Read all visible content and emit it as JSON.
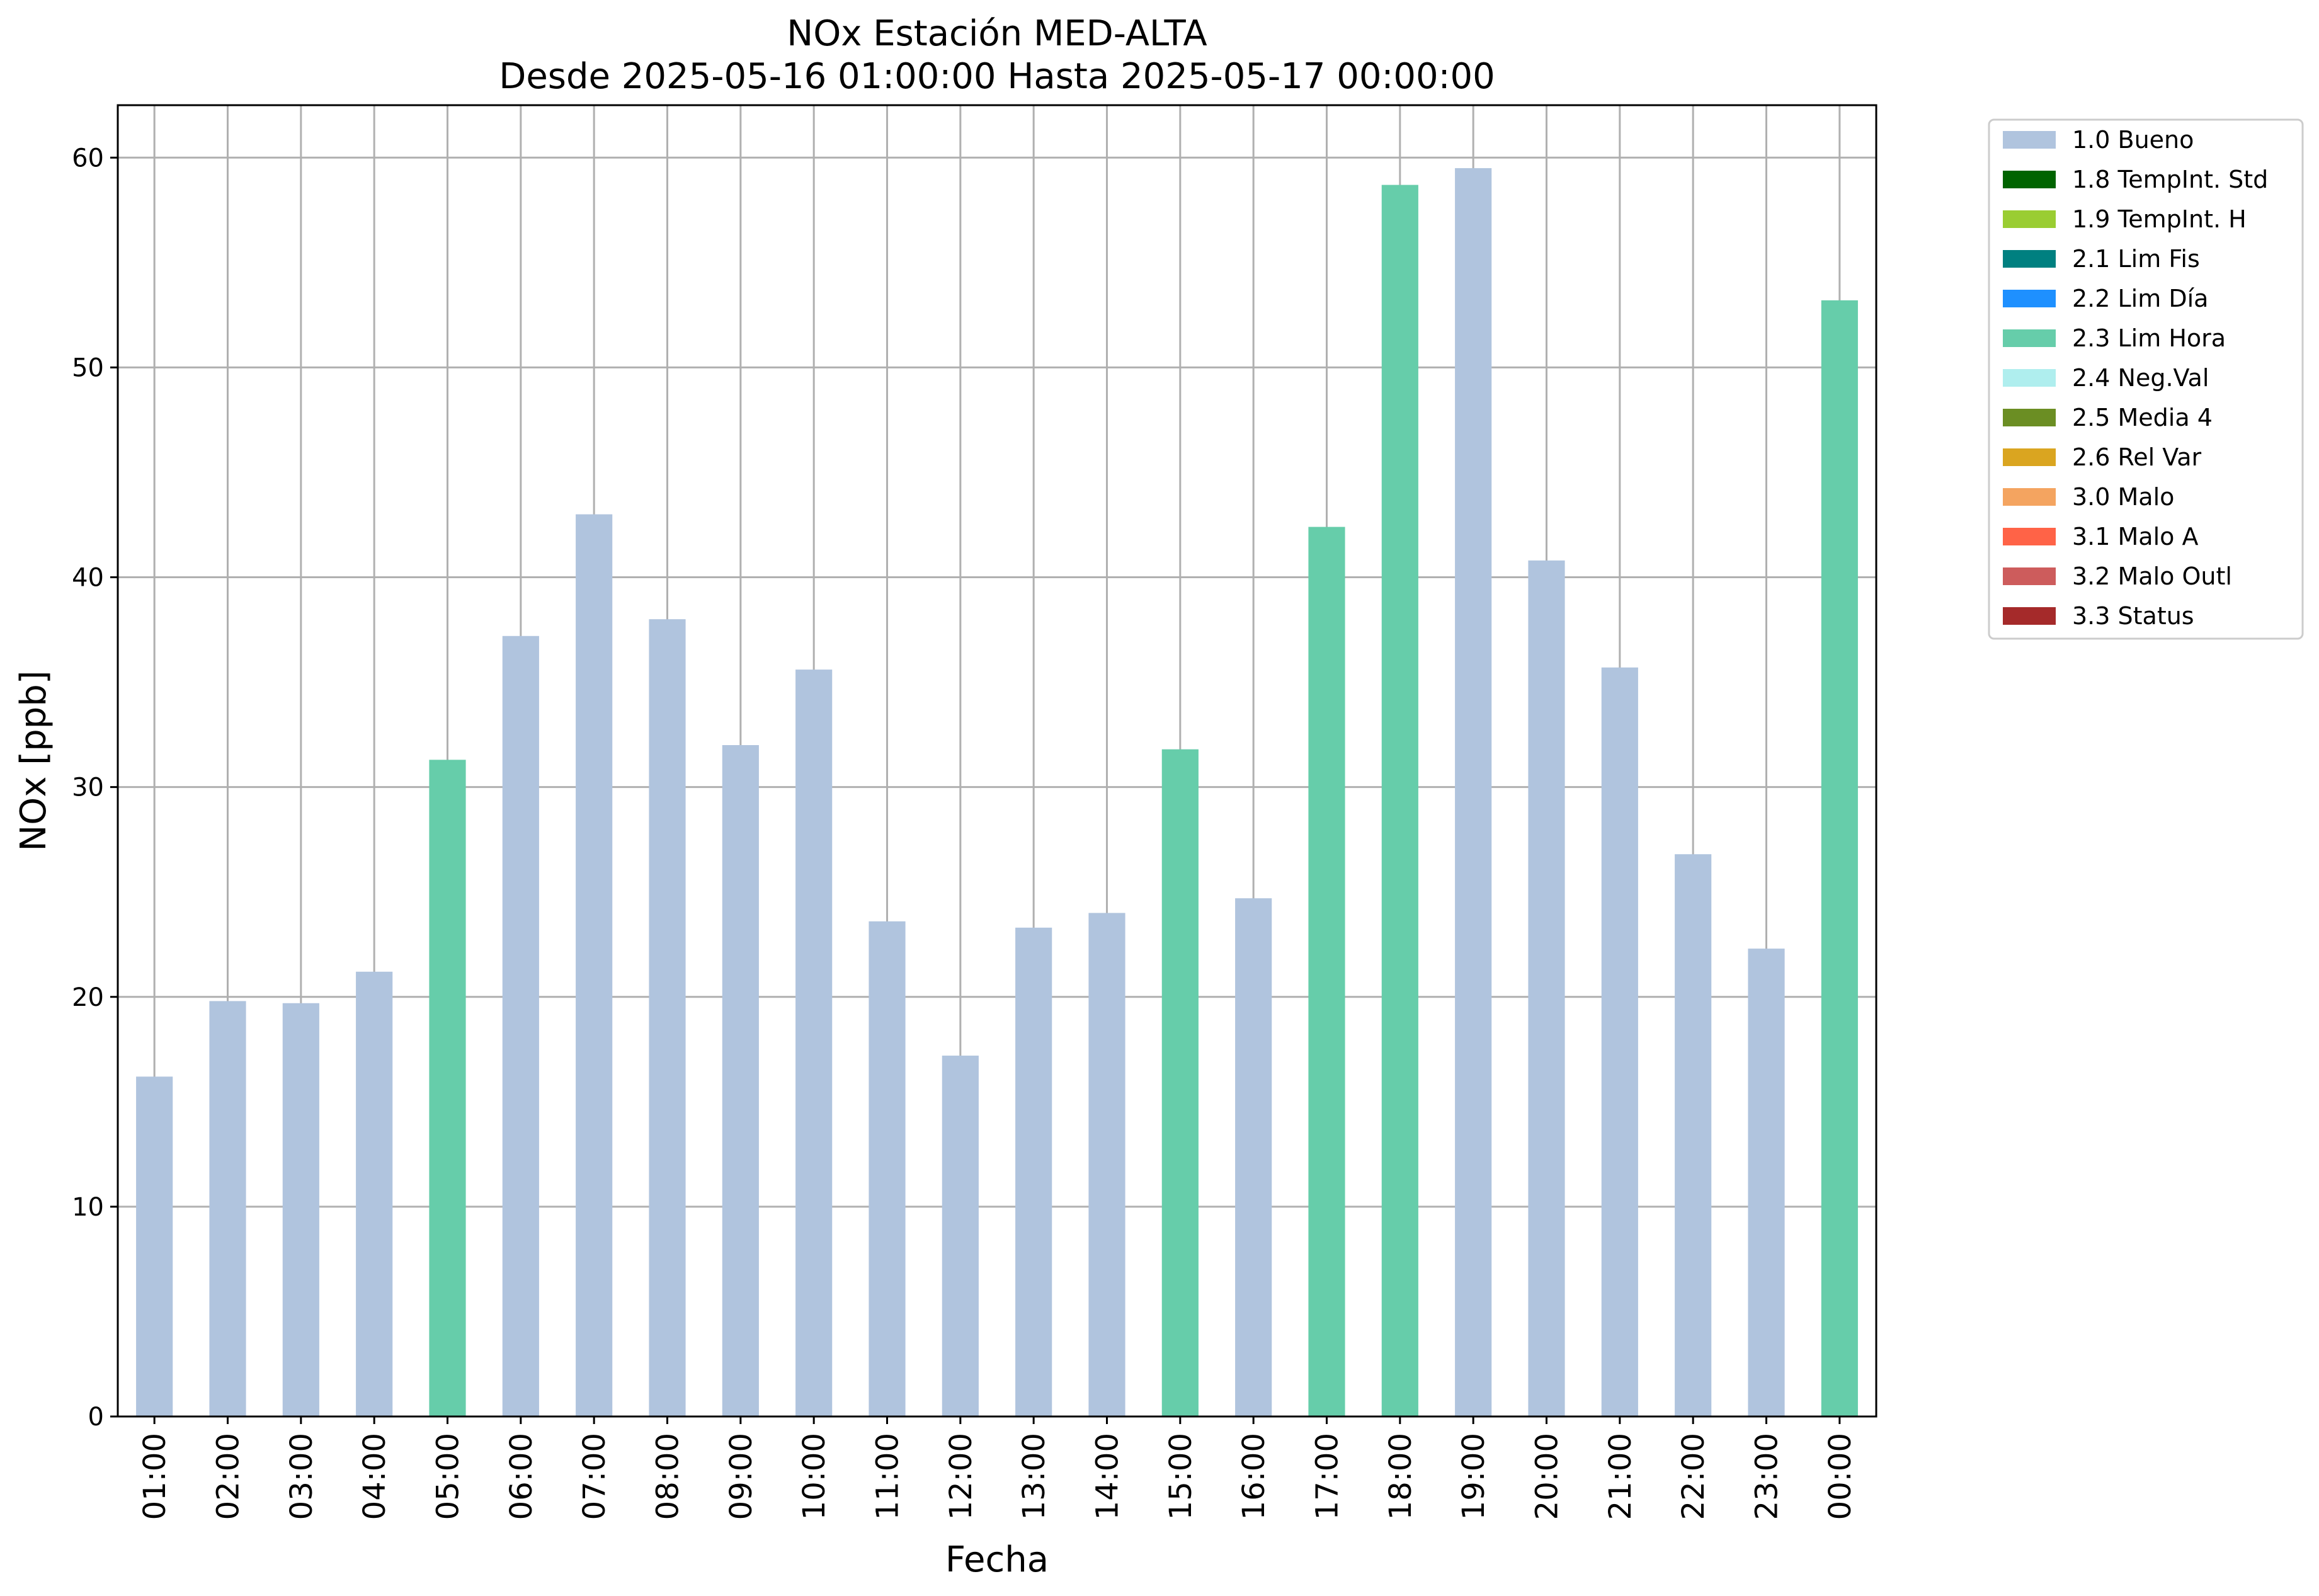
{
  "chart_data": {
    "type": "bar",
    "title": "NOx Estación MED-ALTA",
    "subtitle": "Desde 2025-05-16 01:00:00 Hasta 2025-05-17 00:00:00",
    "xlabel": "Fecha",
    "ylabel": "NOx [ppb]",
    "ylim": [
      0,
      62.5
    ],
    "yticks": [
      0,
      10,
      20,
      30,
      40,
      50,
      60
    ],
    "grid": true,
    "legend_position": "outside-top-right",
    "categories": [
      "01:00",
      "02:00",
      "03:00",
      "04:00",
      "05:00",
      "06:00",
      "07:00",
      "08:00",
      "09:00",
      "10:00",
      "11:00",
      "12:00",
      "13:00",
      "14:00",
      "15:00",
      "16:00",
      "17:00",
      "18:00",
      "19:00",
      "20:00",
      "21:00",
      "22:00",
      "23:00",
      "00:00"
    ],
    "values": [
      16.2,
      19.8,
      19.7,
      21.2,
      31.3,
      37.2,
      43.0,
      38.0,
      32.0,
      35.6,
      23.6,
      17.2,
      23.3,
      24.0,
      31.8,
      24.7,
      42.4,
      58.7,
      59.5,
      40.8,
      35.7,
      26.8,
      22.3,
      53.2
    ],
    "flags": [
      "1.0 Bueno",
      "1.0 Bueno",
      "1.0 Bueno",
      "1.0 Bueno",
      "2.3 Lim Hora",
      "1.0 Bueno",
      "1.0 Bueno",
      "1.0 Bueno",
      "1.0 Bueno",
      "1.0 Bueno",
      "1.0 Bueno",
      "1.0 Bueno",
      "1.0 Bueno",
      "1.0 Bueno",
      "2.3 Lim Hora",
      "1.0 Bueno",
      "2.3 Lim Hora",
      "2.3 Lim Hora",
      "1.0 Bueno",
      "1.0 Bueno",
      "1.0 Bueno",
      "1.0 Bueno",
      "1.0 Bueno",
      "2.3 Lim Hora"
    ],
    "legend": [
      {
        "name": "1.0 Bueno",
        "color": "#b0c4de"
      },
      {
        "name": "1.8 TempInt. Std",
        "color": "#006400"
      },
      {
        "name": "1.9 TempInt. H",
        "color": "#9acd32"
      },
      {
        "name": "2.1 Lim Fis",
        "color": "#008080"
      },
      {
        "name": "2.2 Lim Día",
        "color": "#1e90ff"
      },
      {
        "name": "2.3 Lim Hora",
        "color": "#66cdaa"
      },
      {
        "name": "2.4 Neg.Val",
        "color": "#afeeee"
      },
      {
        "name": "2.5 Media 4",
        "color": "#6b8e23"
      },
      {
        "name": "2.6 Rel Var",
        "color": "#daa520"
      },
      {
        "name": "3.0 Malo",
        "color": "#f4a460"
      },
      {
        "name": "3.1 Malo A",
        "color": "#ff6347"
      },
      {
        "name": "3.2 Malo Outl",
        "color": "#cd5c5c"
      },
      {
        "name": "3.3 Status",
        "color": "#a52a2a"
      }
    ]
  }
}
